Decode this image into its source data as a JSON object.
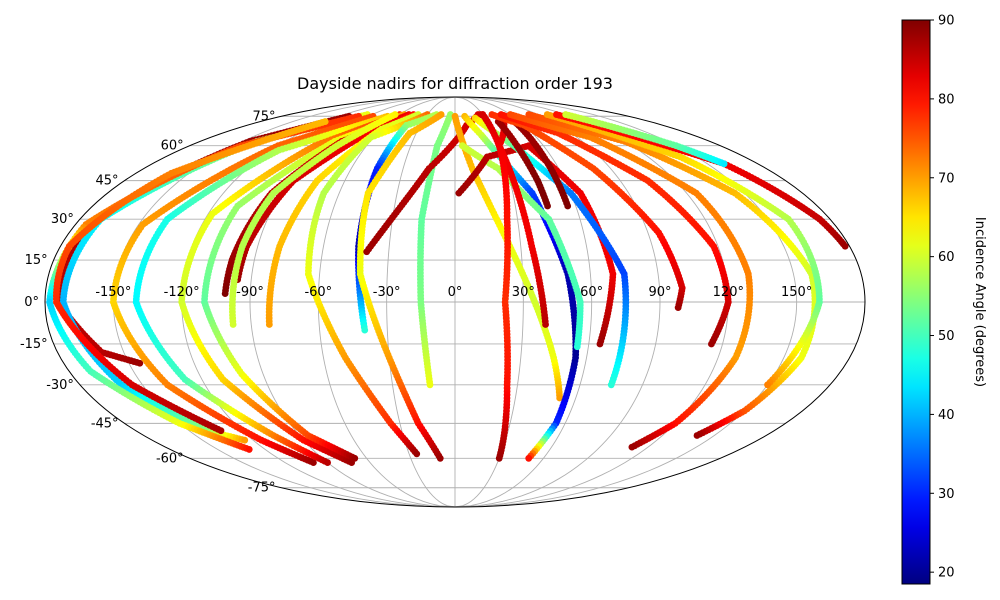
{
  "chart_data": {
    "type": "scatter",
    "projection": "mollweide",
    "title": "Dayside nadirs for diffraction order 193",
    "x_ticks": [
      "-150°",
      "-120°",
      "-90°",
      "-60°",
      "-30°",
      "0°",
      "30°",
      "60°",
      "90°",
      "120°",
      "150°"
    ],
    "x_tick_values": [
      -150,
      -120,
      -90,
      -60,
      -30,
      0,
      30,
      60,
      90,
      120,
      150
    ],
    "y_ticks": [
      "75°",
      "60°",
      "45°",
      "30°",
      "15°",
      "0°",
      "-15°",
      "-30°",
      "-45°",
      "-60°",
      "-75°"
    ],
    "y_tick_values": [
      75,
      60,
      45,
      30,
      15,
      0,
      -15,
      -30,
      -45,
      -60,
      -75
    ],
    "xlim": [
      -180,
      180
    ],
    "ylim": [
      -90,
      90
    ],
    "grid": true,
    "colormap": "jet",
    "colorbar": {
      "label": "Incidence Angle (degrees)",
      "range": [
        18.5,
        90
      ],
      "ticks": [
        "20",
        "30",
        "40",
        "50",
        "60",
        "70",
        "80",
        "90"
      ],
      "tick_values": [
        20,
        30,
        40,
        50,
        60,
        70,
        80,
        90
      ]
    },
    "tracks": [
      {
        "lon": [
          -110,
          -145,
          -172,
          -174,
          -160,
          -145
        ],
        "lat": [
          75,
          62,
          30,
          0,
          -18,
          -22
        ],
        "inc": [
          88,
          88,
          87,
          86,
          86,
          88
        ]
      },
      {
        "lon": [
          -95,
          -140,
          -170,
          -172,
          -160,
          -140,
          -125
        ],
        "lat": [
          76,
          62,
          30,
          0,
          -30,
          -48,
          -52
        ],
        "inc": [
          62,
          56,
          45,
          40,
          42,
          55,
          70
        ]
      },
      {
        "lon": [
          -100,
          -145,
          -175,
          -178,
          -170,
          -150,
          -130
        ],
        "lat": [
          75,
          60,
          28,
          0,
          -25,
          -45,
          -56
        ],
        "inc": [
          78,
          76,
          72,
          42,
          50,
          62,
          80
        ]
      },
      {
        "lon": [
          -120,
          -160,
          -176,
          -175,
          -155,
          -132
        ],
        "lat": [
          72,
          48,
          20,
          0,
          -30,
          -48
        ],
        "inc": [
          68,
          72,
          76,
          78,
          84,
          87
        ]
      },
      {
        "lon": [
          -85,
          -120,
          -148,
          -150,
          -138,
          -115,
          -100
        ],
        "lat": [
          75,
          60,
          28,
          0,
          -30,
          -52,
          -62
        ],
        "inc": [
          76,
          74,
          70,
          66,
          72,
          80,
          88
        ]
      },
      {
        "lon": [
          -70,
          -115,
          -138,
          -140,
          -128,
          -105,
          -90
        ],
        "lat": [
          75,
          58,
          30,
          0,
          -28,
          -50,
          -62
        ],
        "inc": [
          68,
          58,
          47,
          45,
          50,
          72,
          86
        ]
      },
      {
        "lon": [
          -60,
          -95,
          -118,
          -120,
          -110,
          -90,
          -73
        ],
        "lat": [
          76,
          60,
          32,
          0,
          -28,
          -52,
          -62
        ],
        "inc": [
          78,
          72,
          62,
          60,
          66,
          80,
          88
        ]
      },
      {
        "lon": [
          -55,
          -85,
          -108,
          -110,
          -100,
          -85,
          -68
        ],
        "lat": [
          76,
          62,
          35,
          0,
          -26,
          -50,
          -60
        ],
        "inc": [
          70,
          62,
          56,
          52,
          62,
          76,
          88
        ]
      },
      {
        "lon": [
          -50,
          -80,
          -95,
          -100,
          -101
        ],
        "lat": [
          76,
          62,
          40,
          15,
          3
        ],
        "inc": [
          82,
          84,
          86,
          88,
          90
        ]
      },
      {
        "lon": [
          -45,
          -72,
          -88,
          -95,
          -96
        ],
        "lat": [
          76,
          62,
          45,
          20,
          8
        ],
        "inc": [
          80,
          82,
          84,
          86,
          88
        ]
      },
      {
        "lon": [
          -40,
          -60,
          -75,
          -80,
          -82
        ],
        "lat": [
          76,
          68,
          45,
          20,
          -8
        ],
        "inc": [
          60,
          62,
          66,
          68,
          70
        ]
      },
      {
        "lon": [
          -65,
          -80,
          -94,
          -97,
          -98
        ],
        "lat": [
          76,
          60,
          40,
          20,
          -8
        ],
        "inc": [
          64,
          60,
          58,
          58,
          60
        ]
      },
      {
        "lon": [
          -30,
          -62,
          -68,
          -65,
          -50,
          -35,
          -25
        ],
        "lat": [
          76,
          64,
          40,
          10,
          -20,
          -45,
          -58
        ],
        "inc": [
          74,
          60,
          58,
          62,
          70,
          78,
          88
        ]
      },
      {
        "lon": [
          -20,
          -42,
          -45,
          -44,
          -40
        ],
        "lat": [
          76,
          70,
          50,
          20,
          -10
        ],
        "inc": [
          58,
          56,
          30,
          22,
          48
        ]
      },
      {
        "lon": [
          -15,
          -35,
          -45,
          -42,
          -30,
          -20,
          -10
        ],
        "lat": [
          76,
          66,
          40,
          10,
          -20,
          -45,
          -60
        ],
        "inc": [
          70,
          68,
          65,
          62,
          70,
          80,
          88
        ]
      },
      {
        "lon": [
          -5,
          -12,
          -16,
          -15,
          -12
        ],
        "lat": [
          76,
          60,
          30,
          0,
          -30
        ],
        "inc": [
          56,
          54,
          52,
          54,
          62
        ]
      },
      {
        "lon": [
          -40,
          -15,
          10,
          25,
          30
        ],
        "lat": [
          18,
          50,
          70,
          76,
          76
        ],
        "inc": [
          88,
          86,
          84,
          84,
          84
        ]
      },
      {
        "lon": [
          0,
          10,
          25,
          35,
          45,
          52
        ],
        "lat": [
          75,
          50,
          20,
          0,
          -20,
          -35
        ],
        "inc": [
          70,
          68,
          62,
          60,
          62,
          70
        ]
      },
      {
        "lon": [
          10,
          20,
          40,
          50,
          55,
          55,
          50
        ],
        "lat": [
          75,
          65,
          40,
          10,
          -20,
          -45,
          -60
        ],
        "inc": [
          68,
          60,
          32,
          22,
          20,
          30,
          80
        ]
      },
      {
        "lon": [
          5,
          25,
          45,
          55,
          55
        ],
        "lat": [
          60,
          50,
          30,
          0,
          -16
        ],
        "inc": [
          60,
          58,
          52,
          50,
          48
        ]
      },
      {
        "lon": [
          2,
          20,
          50,
          65,
          70,
          65
        ],
        "lat": [
          40,
          55,
          60,
          40,
          10,
          -15
        ],
        "inc": [
          88,
          86,
          84,
          82,
          82,
          88
        ]
      },
      {
        "lon": [
          20,
          40,
          60,
          75,
          75
        ],
        "lat": [
          74,
          60,
          40,
          10,
          -30
        ],
        "inc": [
          66,
          52,
          36,
          32,
          48
        ]
      },
      {
        "lon": [
          30,
          30,
          35,
          40
        ],
        "lat": [
          76,
          60,
          20,
          -8
        ],
        "inc": [
          84,
          82,
          82,
          86
        ]
      },
      {
        "lon": [
          45,
          30,
          25,
          22,
          25,
          30
        ],
        "lat": [
          72,
          60,
          30,
          0,
          -30,
          -60
        ],
        "inc": [
          84,
          82,
          80,
          78,
          80,
          88
        ]
      },
      {
        "lon": [
          40,
          42,
          45,
          46
        ],
        "lat": [
          72,
          60,
          45,
          35
        ],
        "inc": [
          88,
          88,
          90,
          90
        ]
      },
      {
        "lon": [
          55,
          55,
          56
        ],
        "lat": [
          72,
          60,
          35
        ],
        "inc": [
          88,
          88,
          90
        ]
      },
      {
        "lon": [
          40,
          60,
          80,
          95,
          100,
          98
        ],
        "lat": [
          76,
          70,
          50,
          25,
          5,
          -2
        ],
        "inc": [
          78,
          76,
          76,
          80,
          84,
          88
        ]
      },
      {
        "lon": [
          50,
          80,
          105,
          118,
          120,
          115
        ],
        "lat": [
          76,
          66,
          45,
          20,
          0,
          -15
        ],
        "inc": [
          80,
          78,
          78,
          80,
          84,
          88
        ]
      },
      {
        "lon": [
          60,
          100,
          125,
          130,
          128,
          120,
          110
        ],
        "lat": [
          76,
          64,
          40,
          10,
          -20,
          -45,
          -55
        ],
        "inc": [
          76,
          72,
          72,
          72,
          70,
          80,
          88
        ]
      },
      {
        "lon": [
          80,
          120,
          145,
          158,
          158,
          150,
          140
        ],
        "lat": [
          76,
          62,
          40,
          10,
          -20,
          -40,
          -50
        ],
        "inc": [
          76,
          72,
          68,
          60,
          62,
          75,
          88
        ]
      },
      {
        "lon": [
          100,
          140,
          160,
          160,
          150
        ],
        "lat": [
          76,
          55,
          30,
          0,
          -30
        ],
        "inc": [
          70,
          66,
          58,
          52,
          72
        ]
      },
      {
        "lon": [
          110,
          160,
          175,
          178
        ],
        "lat": [
          76,
          52,
          30,
          20
        ],
        "inc": [
          80,
          82,
          85,
          88
        ]
      },
      {
        "lon": [
          120,
          150,
          160
        ],
        "lat": [
          76,
          60,
          52
        ],
        "inc": [
          60,
          52,
          44
        ]
      }
    ]
  }
}
